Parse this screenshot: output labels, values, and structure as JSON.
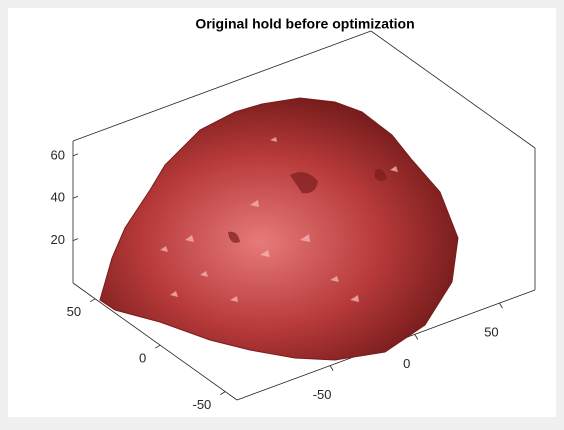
{
  "chart_data": {
    "type": "surface3d",
    "title": "Original hold before optimization",
    "xlim": [
      -105,
      71
    ],
    "ylim": [
      -59,
      67
    ],
    "zlim": [
      0,
      67
    ],
    "xticks": [
      -50,
      0,
      50
    ],
    "yticks": [
      -50,
      0,
      50
    ],
    "zticks": [
      20,
      40,
      60
    ],
    "color": "#b83a3a",
    "grid": false
  }
}
